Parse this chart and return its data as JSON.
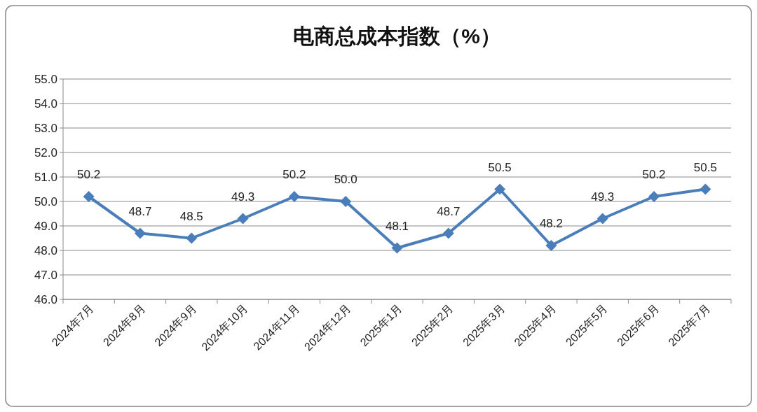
{
  "chart_data": {
    "type": "line",
    "title": "电商总成本指数（%）",
    "categories": [
      "2024年7月",
      "2024年8月",
      "2024年9月",
      "2024年10月",
      "2024年11月",
      "2024年12月",
      "2025年1月",
      "2025年2月",
      "2025年3月",
      "2025年4月",
      "2025年5月",
      "2025年6月",
      "2025年7月"
    ],
    "series": [
      {
        "color": "#4a7ebb",
        "values": [
          50.2,
          48.7,
          48.5,
          49.3,
          50.2,
          50.0,
          48.1,
          48.7,
          50.5,
          48.2,
          49.3,
          50.2,
          50.5
        ],
        "value_labels": [
          "50.2",
          "48.7",
          "48.5",
          "49.3",
          "50.2",
          "50.0",
          "48.1",
          "48.7",
          "50.5",
          "48.2",
          "49.3",
          "50.2",
          "50.5"
        ]
      }
    ],
    "ylim": [
      46,
      55
    ],
    "yticks": [
      {
        "value": 46,
        "label": "46.0"
      },
      {
        "value": 47,
        "label": "47.0"
      },
      {
        "value": 48,
        "label": "48.0"
      },
      {
        "value": 49,
        "label": "49.0"
      },
      {
        "value": 50,
        "label": "50.0"
      },
      {
        "value": 51,
        "label": "51.0"
      },
      {
        "value": 52,
        "label": "52.0"
      },
      {
        "value": 53,
        "label": "53.0"
      },
      {
        "value": 54,
        "label": "54.0"
      },
      {
        "value": 55,
        "label": "55.0"
      }
    ],
    "grid": "y",
    "marker": "diamond",
    "line_style": "solid"
  }
}
